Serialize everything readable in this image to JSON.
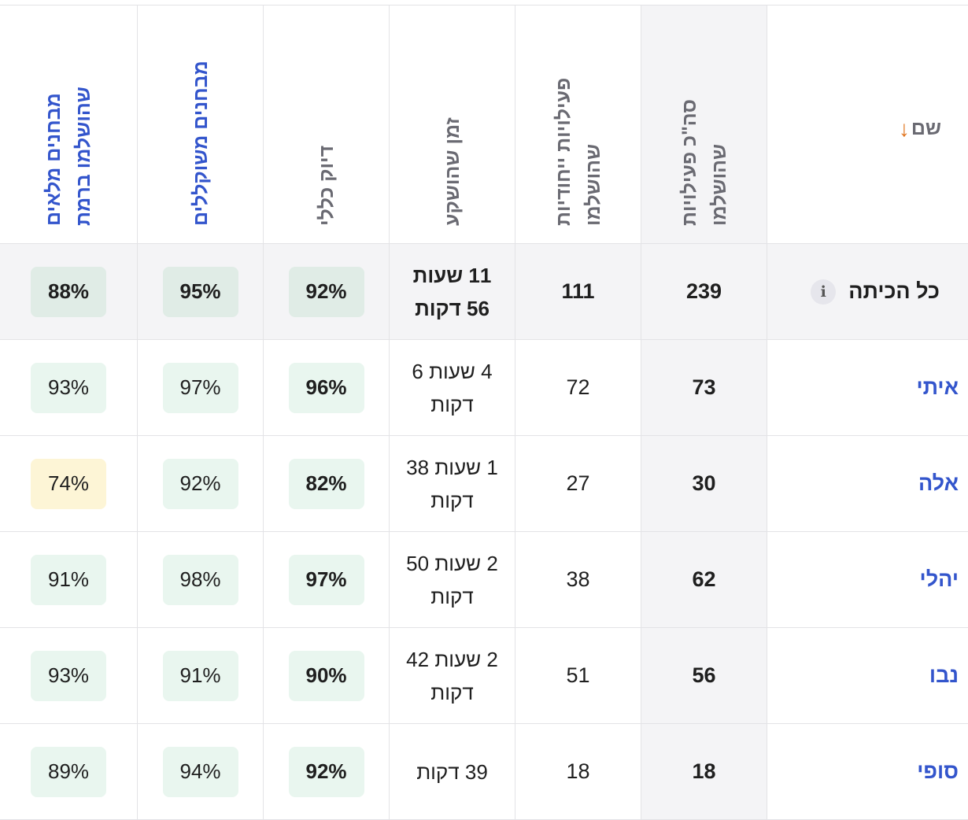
{
  "header": {
    "name_label": "שם",
    "sort_arrow": "↓",
    "total_lines": [
      "סה\"כ פעילויות",
      "שהושלמו"
    ],
    "solved_lines": [
      "פעילויות ייחודיות",
      "שהושלמו"
    ],
    "time_lines": [
      "זמן שהושקע"
    ],
    "accuracy_lines": [
      "דיוק כללי"
    ],
    "results_lines": [
      "מבחנים משוקללים"
    ],
    "results_full_lines": [
      "מבחנים מלאים",
      "שהושלמו ברמת"
    ]
  },
  "summary": {
    "label": "כל הכיתה",
    "info_icon": "i",
    "total": "239",
    "solved": "111",
    "time_line1": "11 שעות",
    "time_line2": "56 דקות",
    "accuracy": "92%",
    "results": "95%",
    "results_full": "88%"
  },
  "students": [
    {
      "name": "איתי",
      "total": "73",
      "solved": "72",
      "time_line1": "4 שעות 6",
      "time_line2": "דקות",
      "accuracy": "96%",
      "results": "97%",
      "results_full": "93%",
      "results_full_color": "g-light"
    },
    {
      "name": "אלה",
      "total": "30",
      "solved": "27",
      "time_line1": "1 שעות 38",
      "time_line2": "דקות",
      "accuracy": "82%",
      "results": "92%",
      "results_full": "74%",
      "results_full_color": "yellow"
    },
    {
      "name": "יהלי",
      "total": "62",
      "solved": "38",
      "time_line1": "2 שעות 50",
      "time_line2": "דקות",
      "accuracy": "97%",
      "results": "98%",
      "results_full": "91%",
      "results_full_color": "g-light"
    },
    {
      "name": "נבו",
      "total": "56",
      "solved": "51",
      "time_line1": "2 שעות 42",
      "time_line2": "דקות",
      "accuracy": "90%",
      "results": "91%",
      "results_full": "93%",
      "results_full_color": "g-light"
    },
    {
      "name": "סופי",
      "total": "18",
      "solved": "18",
      "time_line1": "39 דקות",
      "time_line2": "",
      "accuracy": "92%",
      "results": "94%",
      "results_full": "89%",
      "results_full_color": "g-light"
    }
  ]
}
